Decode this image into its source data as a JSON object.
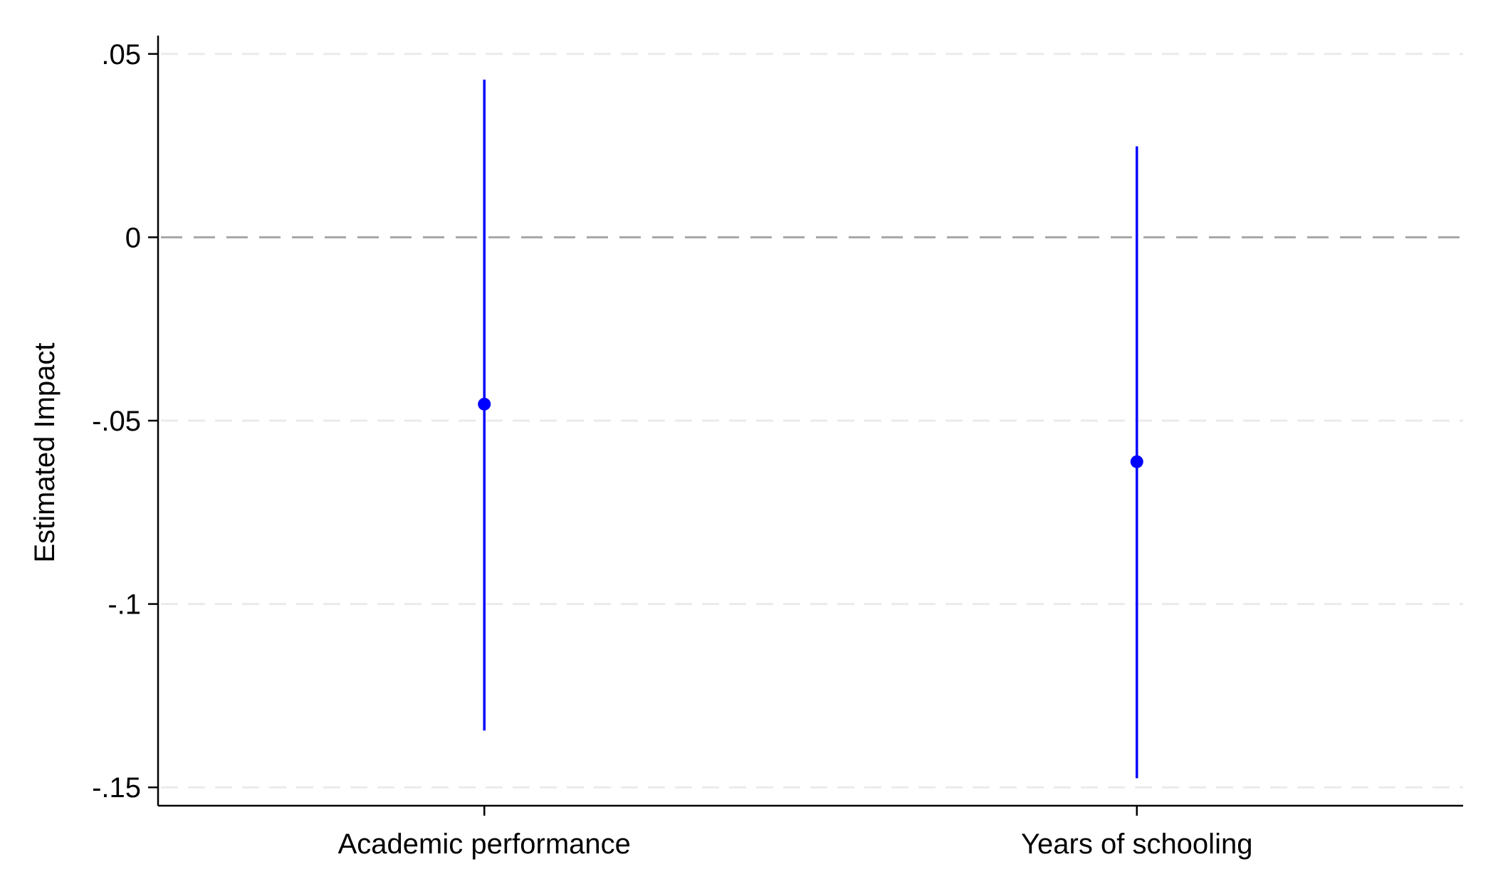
{
  "chart_data": {
    "type": "scatter",
    "title": "",
    "xlabel": "",
    "ylabel": "Estimated Impact",
    "categories": [
      "Academic performance",
      "Years of schooling"
    ],
    "series": [
      {
        "estimates": [
          -0.0455,
          -0.0612
        ],
        "ci_low": [
          -0.1345,
          -0.1475
        ],
        "ci_high": [
          0.043,
          0.0248
        ]
      }
    ],
    "ylim": [
      -0.155,
      0.055
    ],
    "yticks": [
      0.05,
      0,
      -0.05,
      -0.1,
      -0.15
    ],
    "ytick_labels": [
      ".05",
      "0",
      "-.05",
      "-.1",
      "-.15"
    ],
    "reference_line": 0,
    "grid": true,
    "colors": {
      "series": "#0000ff",
      "reference": "#a6a6a6",
      "grid": "#ebebeb"
    }
  }
}
